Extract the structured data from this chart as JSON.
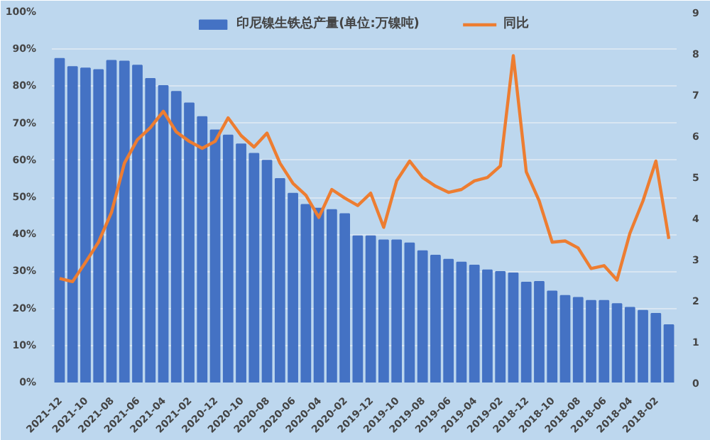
{
  "chart_data": {
    "type": "bar",
    "categories": [
      "2021-12",
      null,
      "2021-10",
      null,
      "2021-08",
      null,
      "2021-06",
      null,
      "2021-04",
      null,
      "2021-02",
      null,
      "2020-12",
      null,
      "2020-10",
      null,
      "2020-08",
      null,
      "2020-06",
      null,
      "2020-04",
      null,
      "2020-02",
      null,
      "2019-12",
      null,
      "2019-10",
      null,
      "2019-08",
      null,
      "2019-06",
      null,
      "2019-04",
      null,
      "2019-02",
      null,
      "2018-12",
      null,
      "2018-10",
      null,
      "2018-08",
      null,
      "2018-06",
      null,
      "2018-04",
      null,
      "2018-02",
      null
    ],
    "series": [
      {
        "name": "印尼镍生铁总产量(单位:万镍吨)",
        "color": "#4472c4",
        "values": [
          87.4,
          85.2,
          84.8,
          84.4,
          86.9,
          86.7,
          85.6,
          82.0,
          80.1,
          78.5,
          75.4,
          71.7,
          68.1,
          66.7,
          64.3,
          61.8,
          59.9,
          55,
          51,
          48,
          47,
          46.6,
          45.5,
          39.5,
          39.5,
          38.4,
          38.4,
          37.6,
          35.5,
          34.3,
          33.2,
          32.4,
          31.6,
          30.3,
          29.9,
          29.5,
          27.0,
          27.2,
          24.6,
          23.4,
          22.9,
          22.1,
          22.1,
          21.2,
          20.2,
          19.4,
          18.6,
          15.5
        ]
      },
      {
        "name": "同比",
        "color": "#ed7d31",
        "type": "line",
        "axis": "y2",
        "values": [
          2.53,
          2.45,
          2.92,
          3.41,
          4.13,
          5.33,
          5.9,
          6.19,
          6.59,
          6.09,
          5.86,
          5.69,
          5.86,
          6.43,
          6.0,
          5.72,
          6.06,
          5.33,
          4.84,
          4.55,
          4.01,
          4.69,
          4.48,
          4.3,
          4.6,
          3.77,
          4.9,
          5.38,
          4.98,
          4.77,
          4.62,
          4.69,
          4.9,
          4.98,
          5.26,
          7.94,
          5.12,
          4.41,
          3.41,
          3.44,
          3.27,
          2.77,
          2.84,
          2.49,
          3.63,
          4.41,
          5.38,
          3.49
        ]
      }
    ],
    "ylim": [
      0,
      100
    ],
    "yticks": [
      {
        "value": 0,
        "label": "0%"
      },
      {
        "value": 10,
        "label": "10%"
      },
      {
        "value": 20,
        "label": "20%"
      },
      {
        "value": 30,
        "label": "30%"
      },
      {
        "value": 40,
        "label": "40%"
      },
      {
        "value": 50,
        "label": "50%"
      },
      {
        "value": 60,
        "label": "60%"
      },
      {
        "value": 70,
        "label": "70%"
      },
      {
        "value": 80,
        "label": "80%"
      },
      {
        "value": 90,
        "label": "90%"
      },
      {
        "value": 100,
        "label": "100%"
      }
    ],
    "y2lim": [
      0,
      9
    ],
    "y2ticks": [
      0,
      1,
      2,
      3,
      4,
      5,
      6,
      7,
      8,
      9
    ],
    "grid": "y",
    "legend": "top"
  }
}
